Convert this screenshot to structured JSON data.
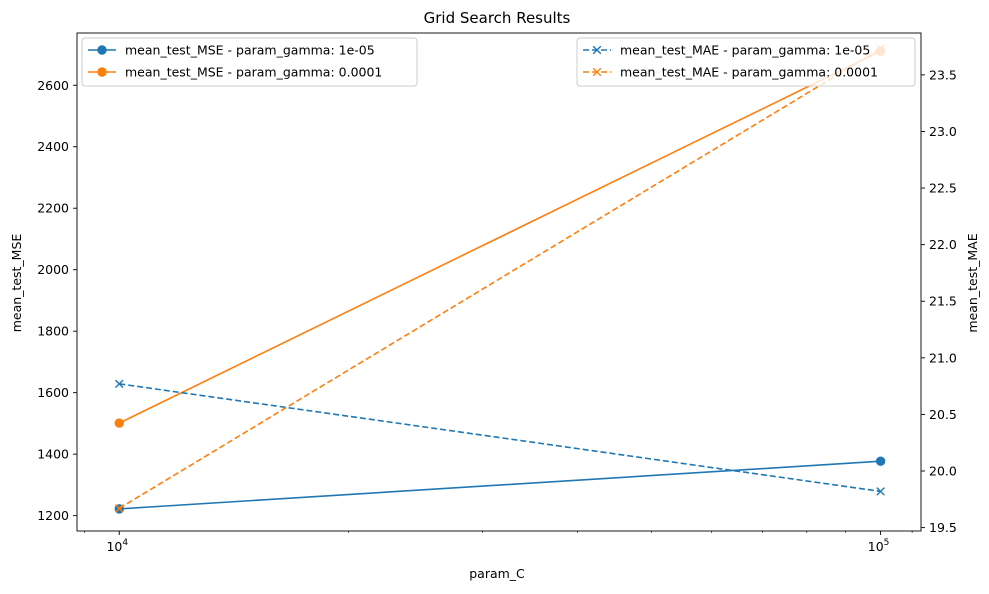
{
  "chart_data": {
    "type": "line",
    "title": "Grid Search Results",
    "xlabel": "param_C",
    "ylabel_left": "mean_test_MSE",
    "ylabel_right": "mean_test_MAE",
    "x_scale": "log",
    "x": [
      10000,
      100000
    ],
    "x_tick_labels": [
      {
        "value": 10000,
        "base": "10",
        "exp": "4"
      },
      {
        "value": 100000,
        "base": "10",
        "exp": "5"
      }
    ],
    "xlim": [
      8800,
      113000
    ],
    "ylim_left": [
      1150,
      2770
    ],
    "ylim_right": [
      19.47,
      23.87
    ],
    "y_ticks_left": [
      1200,
      1400,
      1600,
      1800,
      2000,
      2200,
      2400,
      2600
    ],
    "y_ticks_right": [
      19.5,
      20.0,
      20.5,
      21.0,
      21.5,
      22.0,
      22.5,
      23.0,
      23.5
    ],
    "y_tick_labels_right": [
      "19.5",
      "20.0",
      "20.5",
      "21.0",
      "21.5",
      "22.0",
      "22.5",
      "23.0",
      "23.5"
    ],
    "grid": false,
    "series": [
      {
        "name": "mean_test_MSE - param_gamma: 1e-05",
        "axis": "left",
        "color": "#1f77b4",
        "style": "solid",
        "marker": "circle",
        "values": [
          1222,
          1377
        ]
      },
      {
        "name": "mean_test_MSE - param_gamma: 0.0001",
        "axis": "left",
        "color": "#ff7f0e",
        "style": "solid",
        "marker": "circle",
        "values": [
          1501,
          2711
        ]
      },
      {
        "name": "mean_test_MAE - param_gamma: 1e-05",
        "axis": "right",
        "color": "#1f77b4",
        "style": "dashed",
        "marker": "x",
        "values": [
          20.77,
          19.82
        ]
      },
      {
        "name": "mean_test_MAE - param_gamma: 0.0001",
        "axis": "right",
        "color": "#ff7f0e",
        "style": "dashed",
        "marker": "x",
        "values": [
          19.67,
          23.73
        ]
      }
    ],
    "legends": [
      {
        "placement": "upper-left",
        "series": [
          0,
          1
        ]
      },
      {
        "placement": "upper-right",
        "series": [
          2,
          3
        ]
      }
    ]
  }
}
